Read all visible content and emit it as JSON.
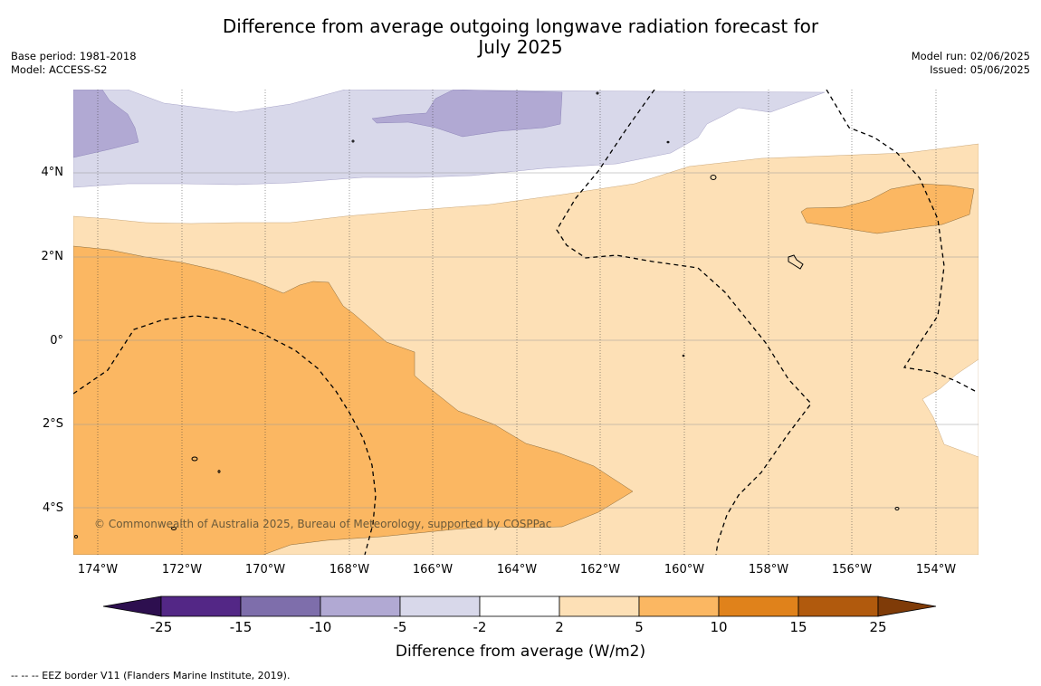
{
  "title_line1": "Difference from average outgoing longwave radiation forecast for",
  "title_line2": "July 2025",
  "base_period": "Base period: 1981-2018",
  "model": "Model: ACCESS-S2",
  "model_run": "Model run: 02/06/2025",
  "issued": "Issued: 05/06/2025",
  "lat_labels": [
    "4°N",
    "2°N",
    "0°",
    "2°S",
    "4°S"
  ],
  "lon_labels": [
    "174°W",
    "172°W",
    "170°W",
    "168°W",
    "166°W",
    "164°W",
    "162°W",
    "160°W",
    "158°W",
    "156°W",
    "154°W"
  ],
  "copyright": "© Commonwealth of Australia 2025, Bureau of Meteorology, supported by COSPPac",
  "colorbar": {
    "labels": [
      "-25",
      "-15",
      "-10",
      "-5",
      "-2",
      "2",
      "5",
      "10",
      "15",
      "25"
    ],
    "colors": {
      "under": "#2d0f4f",
      "-25_-15": "#532786",
      "-15_-10": "#7e6eab",
      "-10_-5": "#b1a9d3",
      "-5_-2": "#d8d8ea",
      "-2_2": "#ffffff",
      "2_5": "#fde0b6",
      "5_10": "#fbb762",
      "10_15": "#e0821b",
      "15_25": "#b15a0d",
      "over": "#7f3b08"
    },
    "title": "Difference from average (W/m2)"
  },
  "legend_footer": "--  --  -- EEZ border V11 (Flanders Marine Institute, 2019)."
}
